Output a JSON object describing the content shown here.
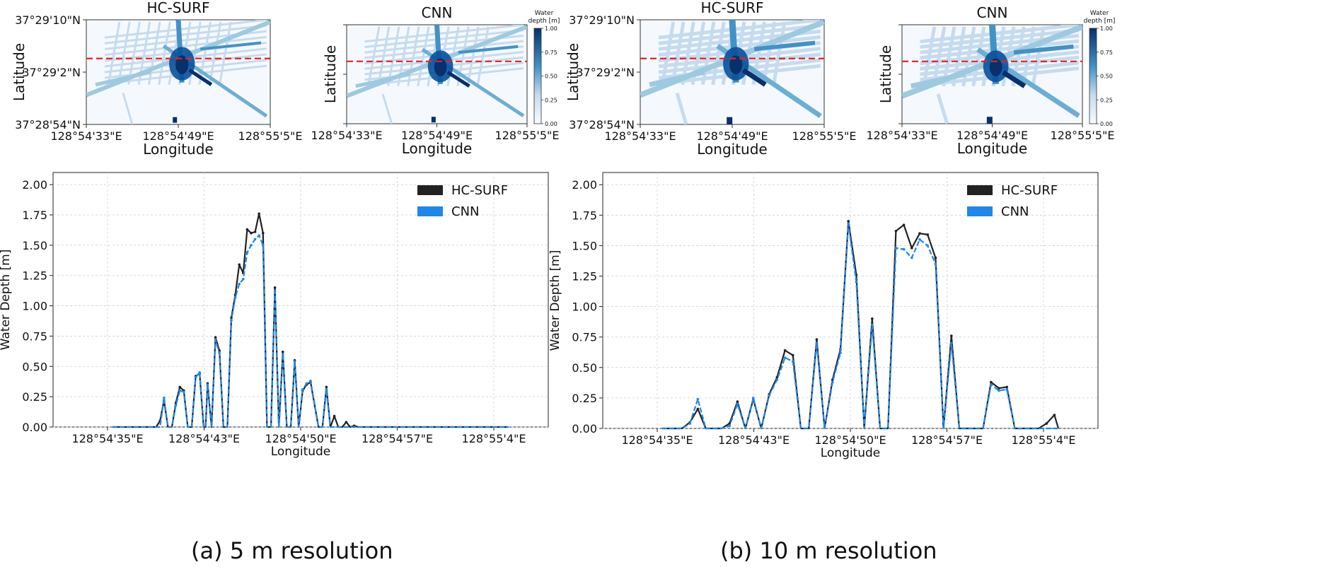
{
  "captions": {
    "a": "(a) 5 m resolution",
    "b": "(b) 10 m resolution"
  },
  "colors": {
    "hcsurf": "#222222",
    "cnn": "#1f86ea",
    "redline": "#e8201c",
    "water_dark": "#08306b",
    "water_light": "#f7fbff"
  },
  "map_labels": {
    "hc_title": "HC-SURF",
    "cnn_title": "CNN",
    "ylabel": "Latitude",
    "xlabel": "Longitude",
    "lat_ticks": [
      "37°29'10\"N",
      "37°29'2\"N",
      "37°28'54\"N"
    ],
    "lon_ticks": [
      "128°54'33\"E",
      "128°54'49\"E",
      "128°55'5\"E"
    ],
    "colorbar_title_1": "Water",
    "colorbar_title_2": "depth [m]",
    "colorbar_ticks": [
      "1.00",
      "0.75",
      "0.50",
      "0.25",
      "0.00"
    ]
  },
  "chart_data": [
    {
      "type": "line",
      "title": "",
      "xlabel": "Longitude",
      "ylabel": "Water Depth [m]",
      "ylim": [
        0,
        2.1
      ],
      "yticks": [
        "0.00",
        "0.25",
        "0.50",
        "0.75",
        "1.00",
        "1.25",
        "1.50",
        "1.75",
        "2.00"
      ],
      "xticks": [
        "128°54'35\"E",
        "128°54'43\"E",
        "128°54'50\"E",
        "128°54'57\"E",
        "128°55'4\"E"
      ],
      "grid": true,
      "legend": "top-right",
      "series": [
        {
          "name": "HC-SURF",
          "x": [
            0,
            0.2,
            0.22,
            0.24,
            0.26,
            0.28,
            0.3,
            0.32,
            0.34,
            0.36,
            0.38,
            0.4,
            0.42,
            0.44,
            0.46,
            0.47,
            0.48,
            0.5,
            0.52,
            0.54,
            0.56,
            0.58,
            0.6,
            0.62,
            0.64,
            0.66,
            0.68,
            0.7,
            0.72,
            0.74,
            0.76,
            0.78,
            0.8,
            0.82,
            0.84,
            0.86,
            0.88,
            0.9,
            0.92,
            0.94,
            0.96,
            0.98,
            1.0,
            1.04,
            1.06,
            1.08,
            1.1,
            1.12,
            1.14,
            1.16,
            1.18,
            1.2,
            1.22,
            1.24,
            1.26,
            1.28,
            1.3,
            1.32,
            1.34,
            1.36,
            1.38,
            1.4,
            1.42,
            1.44,
            1.46,
            1.48,
            1.5,
            1.52,
            1.54,
            1.56,
            1.58,
            1.6,
            1.62,
            1.64,
            1.66,
            1.7,
            2.0
          ],
          "values": [
            0,
            0,
            0,
            0.05,
            0.22,
            0,
            0,
            0.2,
            0.33,
            0.3,
            0,
            0,
            0.42,
            0.44,
            0,
            0,
            0.36,
            0,
            0.74,
            0.63,
            0,
            0,
            0.9,
            1.09,
            1.34,
            1.27,
            1.63,
            1.6,
            1.61,
            1.76,
            1.6,
            0,
            0,
            1.15,
            0,
            0.62,
            0,
            0,
            0.55,
            0,
            0.3,
            0.35,
            0.37,
            0,
            0,
            0.33,
            0,
            0.09,
            0,
            0,
            0.04,
            0,
            0.01,
            0,
            0,
            0,
            0,
            0,
            0,
            0,
            0,
            0,
            0,
            0,
            0,
            0,
            0,
            0,
            0,
            0,
            0,
            0,
            0,
            0,
            0,
            0,
            0
          ]
        },
        {
          "name": "CNN",
          "x": [
            0,
            0.2,
            0.22,
            0.24,
            0.26,
            0.28,
            0.3,
            0.32,
            0.34,
            0.36,
            0.38,
            0.4,
            0.42,
            0.44,
            0.46,
            0.47,
            0.48,
            0.5,
            0.52,
            0.54,
            0.56,
            0.58,
            0.6,
            0.62,
            0.64,
            0.66,
            0.68,
            0.7,
            0.72,
            0.74,
            0.76,
            0.78,
            0.8,
            0.82,
            0.84,
            0.86,
            0.88,
            0.9,
            0.92,
            0.94,
            0.96,
            0.98,
            1.0,
            1.04,
            1.06,
            1.08,
            1.1,
            1.12,
            1.14,
            1.16,
            1.18,
            1.2,
            1.22,
            1.24,
            1.26,
            1.28,
            1.3,
            1.32,
            1.34,
            1.36,
            1.38,
            1.4,
            1.42,
            1.44,
            1.46,
            1.48,
            1.5,
            1.52,
            1.54,
            1.56,
            1.58,
            1.6,
            1.62,
            1.64,
            1.66,
            1.7,
            2.0
          ],
          "values": [
            0,
            0,
            0,
            0,
            0.24,
            0,
            0,
            0.18,
            0.3,
            0.29,
            0,
            0,
            0.41,
            0.45,
            0,
            0,
            0.35,
            0,
            0.72,
            0.61,
            0,
            0,
            0.88,
            1.07,
            1.18,
            1.22,
            1.44,
            1.5,
            1.55,
            1.58,
            1.5,
            0,
            0,
            1.12,
            0,
            0.6,
            0,
            0,
            0.54,
            0,
            0.31,
            0.36,
            0.38,
            0,
            0,
            0.31,
            0,
            0,
            0,
            0,
            0,
            0,
            0,
            0,
            0,
            0,
            0,
            0,
            0,
            0,
            0,
            0,
            0,
            0,
            0,
            0,
            0,
            0,
            0,
            0,
            0,
            0,
            0,
            0,
            0,
            0,
            0
          ]
        }
      ]
    },
    {
      "type": "line",
      "title": "",
      "xlabel": "Longitude",
      "ylabel": "Water Depth [m]",
      "ylim": [
        0,
        2.1
      ],
      "yticks": [
        "0.00",
        "0.25",
        "0.50",
        "0.75",
        "1.00",
        "1.25",
        "1.50",
        "1.75",
        "2.00"
      ],
      "xticks": [
        "128°54'35\"E",
        "128°54'43\"E",
        "128°54'50\"E",
        "128°54'57\"E",
        "128°55'4\"E"
      ],
      "grid": true,
      "legend": "top-right",
      "series": [
        {
          "name": "HC-SURF",
          "x": [
            0,
            0.1,
            0.14,
            0.18,
            0.22,
            0.26,
            0.3,
            0.34,
            0.38,
            0.42,
            0.46,
            0.5,
            0.54,
            0.58,
            0.62,
            0.66,
            0.7,
            0.74,
            0.78,
            0.82,
            0.86,
            0.9,
            0.94,
            0.98,
            1.02,
            1.06,
            1.1,
            1.14,
            1.18,
            1.22,
            1.26,
            1.3,
            1.34,
            1.38,
            1.42,
            1.46,
            1.5,
            1.54,
            1.58,
            1.62,
            1.66,
            1.7,
            1.74,
            1.78,
            1.82,
            1.86,
            1.9,
            1.94,
            1.98,
            2.0
          ],
          "values": [
            0,
            0,
            0.05,
            0.16,
            0,
            0,
            0,
            0.04,
            0.22,
            0,
            0.24,
            0,
            0.28,
            0.42,
            0.64,
            0.6,
            0,
            0,
            0.73,
            0,
            0.4,
            0.65,
            1.7,
            1.26,
            0,
            0.9,
            0,
            0,
            1.62,
            1.67,
            1.48,
            1.6,
            1.59,
            1.4,
            0,
            0.76,
            0,
            0,
            0,
            0,
            0.38,
            0.33,
            0.34,
            0,
            0,
            0,
            0,
            0.04,
            0.11,
            0
          ]
        },
        {
          "name": "CNN",
          "x": [
            0,
            0.1,
            0.14,
            0.18,
            0.22,
            0.26,
            0.3,
            0.34,
            0.38,
            0.42,
            0.46,
            0.5,
            0.54,
            0.58,
            0.62,
            0.66,
            0.7,
            0.74,
            0.78,
            0.82,
            0.86,
            0.9,
            0.94,
            0.98,
            1.02,
            1.06,
            1.1,
            1.14,
            1.18,
            1.22,
            1.26,
            1.3,
            1.34,
            1.38,
            1.42,
            1.46,
            1.5,
            1.54,
            1.58,
            1.62,
            1.66,
            1.7,
            1.74,
            1.78,
            1.82,
            1.86,
            1.9,
            1.94,
            1.98,
            2.0
          ],
          "values": [
            0,
            0,
            0.04,
            0.24,
            0,
            0,
            0,
            0.02,
            0.2,
            0,
            0.25,
            0,
            0.27,
            0.4,
            0.58,
            0.55,
            0,
            0,
            0.7,
            0,
            0.38,
            0.62,
            1.68,
            1.2,
            0,
            0.85,
            0,
            0,
            1.48,
            1.47,
            1.4,
            1.55,
            1.5,
            1.35,
            0,
            0.7,
            0,
            0,
            0,
            0,
            0.36,
            0.31,
            0.32,
            0,
            0,
            0,
            0,
            0,
            0,
            0
          ]
        }
      ]
    }
  ]
}
